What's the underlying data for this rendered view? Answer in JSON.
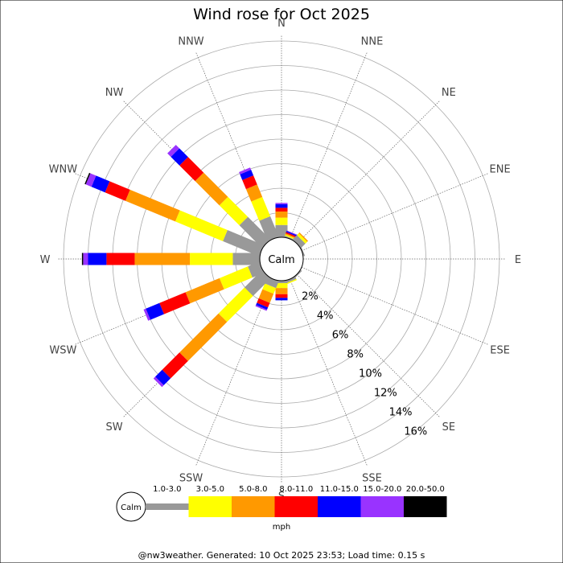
{
  "chart_data": {
    "type": "windrose",
    "title": "Wind rose for Oct 2025",
    "directions": [
      "N",
      "NNE",
      "NE",
      "ENE",
      "E",
      "ESE",
      "SE",
      "SSE",
      "S",
      "SSW",
      "SW",
      "WSW",
      "W",
      "WNW",
      "NW",
      "NNW"
    ],
    "radial_ticks": [
      "2%",
      "4%",
      "6%",
      "8%",
      "10%",
      "12%",
      "14%",
      "16%"
    ],
    "radial_max": 16,
    "calm_label": "Calm",
    "unit": "mph",
    "speed_bins": [
      {
        "name": "1.0-3.0",
        "color": "#999999"
      },
      {
        "name": "3.0-5.0",
        "color": "#ffff00"
      },
      {
        "name": "5.0-8.0",
        "color": "#ff9900"
      },
      {
        "name": "8.0-11.0",
        "color": "#ff0000"
      },
      {
        "name": "11.0-15.0",
        "color": "#0000ff"
      },
      {
        "name": "15.0-20.0",
        "color": "#9933ff"
      },
      {
        "name": "20.0-50.0",
        "color": "#000000"
      }
    ],
    "series": [
      {
        "direction": "N",
        "values": [
          1.0,
          0.6,
          0.5,
          0.3,
          0.3,
          0.1,
          0.0
        ]
      },
      {
        "direction": "NNE",
        "values": [
          0.1,
          0.1,
          0.1,
          0.1,
          0.1,
          0.05,
          0.0
        ]
      },
      {
        "direction": "NE",
        "values": [
          0.5,
          0.2,
          0.1,
          0.0,
          0.0,
          0.0,
          0.0
        ]
      },
      {
        "direction": "ENE",
        "values": [
          0.1,
          0.0,
          0.0,
          0.0,
          0.0,
          0.0,
          0.0
        ]
      },
      {
        "direction": "E",
        "values": [
          0.0,
          0.0,
          0.0,
          0.0,
          0.0,
          0.0,
          0.0
        ]
      },
      {
        "direction": "ESE",
        "values": [
          0.0,
          0.0,
          0.0,
          0.0,
          0.0,
          0.0,
          0.0
        ]
      },
      {
        "direction": "SE",
        "values": [
          0.1,
          0.0,
          0.0,
          0.0,
          0.0,
          0.0,
          0.0
        ]
      },
      {
        "direction": "SSE",
        "values": [
          0.2,
          0.1,
          0.0,
          0.0,
          0.0,
          0.0,
          0.0
        ]
      },
      {
        "direction": "S",
        "values": [
          0.2,
          0.4,
          0.5,
          0.3,
          0.2,
          0.0,
          0.0
        ]
      },
      {
        "direction": "SSW",
        "values": [
          0.6,
          0.5,
          0.8,
          0.4,
          0.2,
          0.1,
          0.0
        ]
      },
      {
        "direction": "SW",
        "values": [
          2.0,
          3.0,
          4.5,
          2.0,
          0.8,
          0.2,
          0.0
        ]
      },
      {
        "direction": "WSW",
        "values": [
          1.0,
          2.5,
          3.0,
          2.3,
          1.2,
          0.2,
          0.0
        ]
      },
      {
        "direction": "W",
        "values": [
          2.2,
          3.5,
          4.5,
          2.3,
          1.5,
          0.4,
          0.1
        ]
      },
      {
        "direction": "WNW",
        "values": [
          3.2,
          4.2,
          4.4,
          1.8,
          1.2,
          0.5,
          0.1
        ]
      },
      {
        "direction": "NW",
        "values": [
          2.6,
          2.3,
          2.8,
          1.8,
          1.0,
          0.4,
          0.0
        ]
      },
      {
        "direction": "NNW",
        "values": [
          1.8,
          1.7,
          1.1,
          0.8,
          0.5,
          0.2,
          0.0
        ]
      }
    ]
  },
  "footer": "@nw3weather. Generated: 10 Oct 2025 23:53; Load time: 0.15 s"
}
